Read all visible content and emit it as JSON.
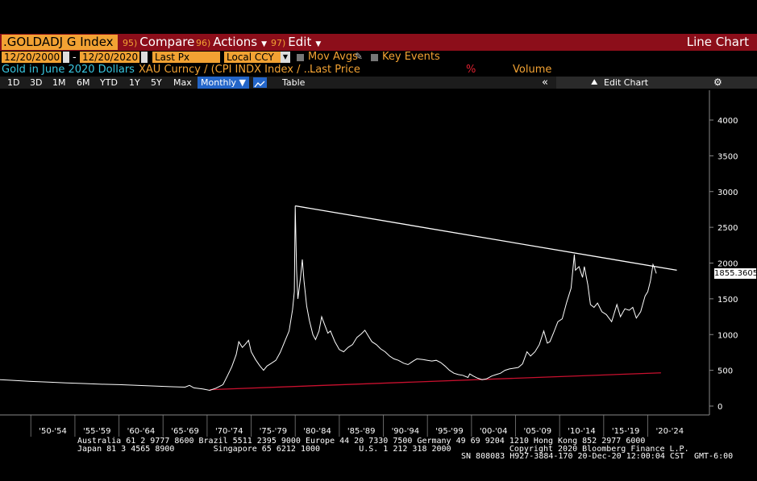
{
  "titlebar": {
    "ticker": ".GOLDADJ G Index",
    "compare_num": "95)",
    "compare": "Compare",
    "actions_num": "96)",
    "actions": "Actions",
    "edit_num": "97)",
    "edit": "Edit",
    "chart_type": "Line Chart"
  },
  "controls": {
    "start_date": "12/20/2000",
    "end_date": "12/20/2020",
    "separator": "-",
    "price_field": "Last Px",
    "currency": "Local CCY",
    "mov_avgs": "Mov Avgs",
    "key_events": "Key Events"
  },
  "legend": {
    "security_name": "Gold in June 2020 Dollars",
    "formula": "XAU Curncy / (CPI INDX Index / ...",
    "last_price": "Last Price",
    "percent": "%",
    "volume": "Volume"
  },
  "toolbar": {
    "periods": [
      "1D",
      "3D",
      "1M",
      "6M",
      "YTD",
      "1Y",
      "5Y",
      "Max"
    ],
    "frequency": "Monthly ▼",
    "table": "Table",
    "collapse": "«",
    "edit_chart": "Edit Chart"
  },
  "colors": {
    "title_bar": "#8c0e1a",
    "amber": "#f2a233",
    "price_line": "#ffffff",
    "resistance_line": "#ffffff",
    "support_line": "#c8102e"
  },
  "footer": {
    "line1": "Australia 61 2 9777 8600 Brazil 5511 2395 9000 Europe 44 20 7330 7500 Germany 49 69 9204 1210 Hong Kong 852 2977 6000",
    "line2": "Japan 81 3 4565 8900        Singapore 65 6212 1000        U.S. 1 212 318 2000            Copyright 2020 Bloomberg Finance L.P.",
    "line3": "SN 808083 H927-3884-170 20-Dec-20 12:00:04 CST  GMT-6:00"
  },
  "chart_data": {
    "type": "line",
    "ylim": [
      -100,
      4400
    ],
    "yticks": [
      0,
      500,
      1000,
      1500,
      2000,
      2500,
      3000,
      3500,
      4000
    ],
    "xlim": [
      1946.5,
      2027
    ],
    "xticks": [
      {
        "label": "'50-'54",
        "center": 1952.5
      },
      {
        "label": "'55-'59",
        "center": 1957.5
      },
      {
        "label": "'60-'64",
        "center": 1962.5
      },
      {
        "label": "'65-'69",
        "center": 1967.5
      },
      {
        "label": "'70-'74",
        "center": 1972.5
      },
      {
        "label": "'75-'79",
        "center": 1977.5
      },
      {
        "label": "'80-'84",
        "center": 1982.5
      },
      {
        "label": "'85-'89",
        "center": 1987.5
      },
      {
        "label": "'90-'94",
        "center": 1992.5
      },
      {
        "label": "'95-'99",
        "center": 1997.5
      },
      {
        "label": "'00-'04",
        "center": 2002.5
      },
      {
        "label": "'05-'09",
        "center": 2007.5
      },
      {
        "label": "'10-'14",
        "center": 2012.5
      },
      {
        "label": "'15-'19",
        "center": 2017.5
      },
      {
        "label": "'20-'24",
        "center": 2022.5
      }
    ],
    "last_value_label": "1855.3605",
    "last_value": 1855.36,
    "series": [
      {
        "values": [
          [
            1946.5,
            370
          ],
          [
            1948,
            360
          ],
          [
            1950,
            345
          ],
          [
            1952,
            335
          ],
          [
            1954,
            325
          ],
          [
            1956,
            315
          ],
          [
            1958,
            305
          ],
          [
            1960,
            300
          ],
          [
            1962,
            290
          ],
          [
            1964,
            280
          ],
          [
            1966,
            270
          ],
          [
            1967.5,
            265
          ],
          [
            1968.0,
            290
          ],
          [
            1968.5,
            255
          ],
          [
            1969.5,
            240
          ],
          [
            1970.3,
            220
          ],
          [
            1971.0,
            250
          ],
          [
            1971.8,
            300
          ],
          [
            1972.3,
            420
          ],
          [
            1972.8,
            550
          ],
          [
            1973.3,
            720
          ],
          [
            1973.6,
            900
          ],
          [
            1974.0,
            820
          ],
          [
            1974.3,
            860
          ],
          [
            1974.7,
            920
          ],
          [
            1975.0,
            760
          ],
          [
            1975.5,
            650
          ],
          [
            1976.0,
            560
          ],
          [
            1976.4,
            500
          ],
          [
            1976.8,
            560
          ],
          [
            1977.3,
            600
          ],
          [
            1977.8,
            640
          ],
          [
            1978.3,
            750
          ],
          [
            1978.8,
            900
          ],
          [
            1979.3,
            1050
          ],
          [
            1979.7,
            1350
          ],
          [
            1979.9,
            1600
          ],
          [
            1980.0,
            2800
          ],
          [
            1980.15,
            1900
          ],
          [
            1980.3,
            1500
          ],
          [
            1980.6,
            1800
          ],
          [
            1980.8,
            2050
          ],
          [
            1981.0,
            1750
          ],
          [
            1981.3,
            1400
          ],
          [
            1981.6,
            1200
          ],
          [
            1982.0,
            1000
          ],
          [
            1982.3,
            930
          ],
          [
            1982.7,
            1050
          ],
          [
            1983.0,
            1250
          ],
          [
            1983.3,
            1150
          ],
          [
            1983.7,
            1020
          ],
          [
            1984.0,
            1050
          ],
          [
            1984.5,
            900
          ],
          [
            1985.0,
            790
          ],
          [
            1985.5,
            760
          ],
          [
            1986.0,
            820
          ],
          [
            1986.5,
            860
          ],
          [
            1987.0,
            960
          ],
          [
            1987.5,
            1010
          ],
          [
            1987.9,
            1060
          ],
          [
            1988.3,
            980
          ],
          [
            1988.7,
            900
          ],
          [
            1989.2,
            860
          ],
          [
            1989.7,
            800
          ],
          [
            1990.2,
            760
          ],
          [
            1990.7,
            700
          ],
          [
            1991.2,
            660
          ],
          [
            1991.7,
            640
          ],
          [
            1992.3,
            600
          ],
          [
            1992.8,
            580
          ],
          [
            1993.4,
            630
          ],
          [
            1993.8,
            660
          ],
          [
            1994.5,
            650
          ],
          [
            1995.0,
            640
          ],
          [
            1995.5,
            630
          ],
          [
            1996.0,
            640
          ],
          [
            1996.5,
            610
          ],
          [
            1997.0,
            560
          ],
          [
            1997.5,
            500
          ],
          [
            1998.0,
            460
          ],
          [
            1998.5,
            440
          ],
          [
            1999.0,
            430
          ],
          [
            1999.6,
            400
          ],
          [
            1999.8,
            450
          ],
          [
            2000.2,
            420
          ],
          [
            2000.7,
            390
          ],
          [
            2001.2,
            370
          ],
          [
            2001.7,
            380
          ],
          [
            2002.3,
            420
          ],
          [
            2002.8,
            440
          ],
          [
            2003.3,
            460
          ],
          [
            2003.8,
            500
          ],
          [
            2004.3,
            520
          ],
          [
            2004.8,
            530
          ],
          [
            2005.3,
            540
          ],
          [
            2005.8,
            590
          ],
          [
            2006.3,
            760
          ],
          [
            2006.7,
            700
          ],
          [
            2007.2,
            760
          ],
          [
            2007.7,
            860
          ],
          [
            2008.2,
            1050
          ],
          [
            2008.6,
            880
          ],
          [
            2008.9,
            900
          ],
          [
            2009.3,
            1020
          ],
          [
            2009.8,
            1180
          ],
          [
            2010.3,
            1220
          ],
          [
            2010.8,
            1450
          ],
          [
            2011.3,
            1650
          ],
          [
            2011.67,
            2120
          ],
          [
            2011.8,
            1900
          ],
          [
            2012.2,
            1950
          ],
          [
            2012.6,
            1800
          ],
          [
            2012.8,
            1950
          ],
          [
            2013.2,
            1700
          ],
          [
            2013.5,
            1420
          ],
          [
            2013.9,
            1380
          ],
          [
            2014.3,
            1440
          ],
          [
            2014.8,
            1320
          ],
          [
            2015.3,
            1280
          ],
          [
            2015.9,
            1180
          ],
          [
            2016.5,
            1420
          ],
          [
            2016.9,
            1250
          ],
          [
            2017.4,
            1360
          ],
          [
            2017.9,
            1340
          ],
          [
            2018.3,
            1380
          ],
          [
            2018.7,
            1230
          ],
          [
            2019.2,
            1320
          ],
          [
            2019.7,
            1540
          ],
          [
            2020.0,
            1600
          ],
          [
            2020.3,
            1750
          ],
          [
            2020.6,
            1980
          ],
          [
            2020.8,
            1920
          ],
          [
            2020.97,
            1855
          ]
        ]
      }
    ],
    "trendlines": [
      {
        "kind": "resistance",
        "from": [
          1980.0,
          2800
        ],
        "to": [
          2023.3,
          1900
        ]
      },
      {
        "kind": "support",
        "from": [
          1970.3,
          230
        ],
        "to": [
          2021.5,
          465
        ]
      }
    ]
  }
}
